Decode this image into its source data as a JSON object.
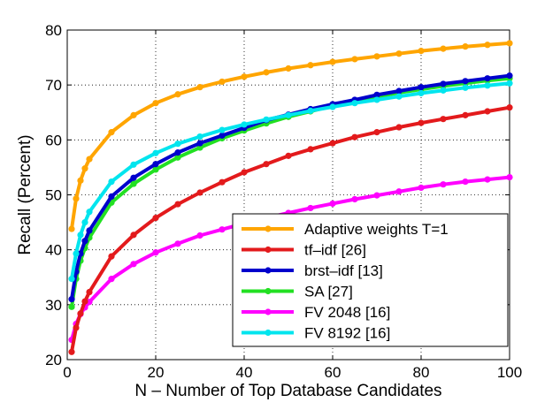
{
  "chart_data": {
    "type": "line",
    "title": "",
    "xlabel": "N – Number of Top Database Candidates",
    "ylabel": "Recall (Percent)",
    "xlim": [
      0,
      100
    ],
    "ylim": [
      20,
      80
    ],
    "xticks": [
      0,
      20,
      40,
      60,
      80,
      100
    ],
    "yticks": [
      20,
      30,
      40,
      50,
      60,
      70,
      80
    ],
    "grid": true,
    "legend_position": "bottom-right",
    "x": [
      1,
      2,
      3,
      4,
      5,
      10,
      15,
      20,
      25,
      30,
      35,
      40,
      45,
      50,
      55,
      60,
      65,
      70,
      75,
      80,
      85,
      90,
      95,
      100
    ],
    "series": [
      {
        "name": "Adaptive weights T=1",
        "color": "#ffa500",
        "values": [
          43.8,
          49.3,
          52.6,
          54.8,
          56.5,
          61.4,
          64.5,
          66.7,
          68.3,
          69.6,
          70.6,
          71.5,
          72.3,
          73.0,
          73.6,
          74.2,
          74.7,
          75.2,
          75.7,
          76.2,
          76.6,
          77.0,
          77.3,
          77.6
        ]
      },
      {
        "name": "tf–idf [26]",
        "color": "#e31a1c",
        "values": [
          21.4,
          25.8,
          28.4,
          30.6,
          32.3,
          38.8,
          42.7,
          45.8,
          48.3,
          50.4,
          52.3,
          54.1,
          55.6,
          57.1,
          58.3,
          59.4,
          60.5,
          61.4,
          62.3,
          63.1,
          63.8,
          64.5,
          65.2,
          65.9
        ]
      },
      {
        "name": "brst–idf [13]",
        "color": "#0000cc",
        "values": [
          31.0,
          36.0,
          39.3,
          41.6,
          43.5,
          49.7,
          53.1,
          55.6,
          57.7,
          59.4,
          60.8,
          62.2,
          63.6,
          64.6,
          65.6,
          66.5,
          67.3,
          68.2,
          68.9,
          69.6,
          70.2,
          70.7,
          71.2,
          71.7
        ]
      },
      {
        "name": "SA [27]",
        "color": "#22e022",
        "values": [
          29.6,
          34.7,
          38.0,
          40.3,
          42.2,
          48.6,
          52.0,
          54.6,
          56.8,
          58.6,
          60.3,
          61.7,
          63.0,
          64.2,
          65.2,
          66.2,
          67.0,
          67.8,
          68.6,
          69.2,
          69.8,
          70.3,
          70.8,
          71.2
        ]
      },
      {
        "name": "FV 2048 [16]",
        "color": "#ff00ff",
        "values": [
          23.6,
          26.5,
          28.3,
          29.5,
          30.5,
          34.7,
          37.4,
          39.5,
          41.1,
          42.6,
          43.7,
          44.8,
          45.8,
          46.7,
          47.6,
          48.4,
          49.2,
          49.9,
          50.6,
          51.3,
          51.9,
          52.4,
          52.8,
          53.2
        ]
      },
      {
        "name": "FV 8192 [16]",
        "color": "#00e5ee",
        "values": [
          34.7,
          39.3,
          42.7,
          45.0,
          46.9,
          52.4,
          55.5,
          57.6,
          59.3,
          60.6,
          61.8,
          62.8,
          63.7,
          64.5,
          65.3,
          66.0,
          66.7,
          67.3,
          67.9,
          68.5,
          69.0,
          69.5,
          69.9,
          70.3
        ]
      }
    ]
  }
}
